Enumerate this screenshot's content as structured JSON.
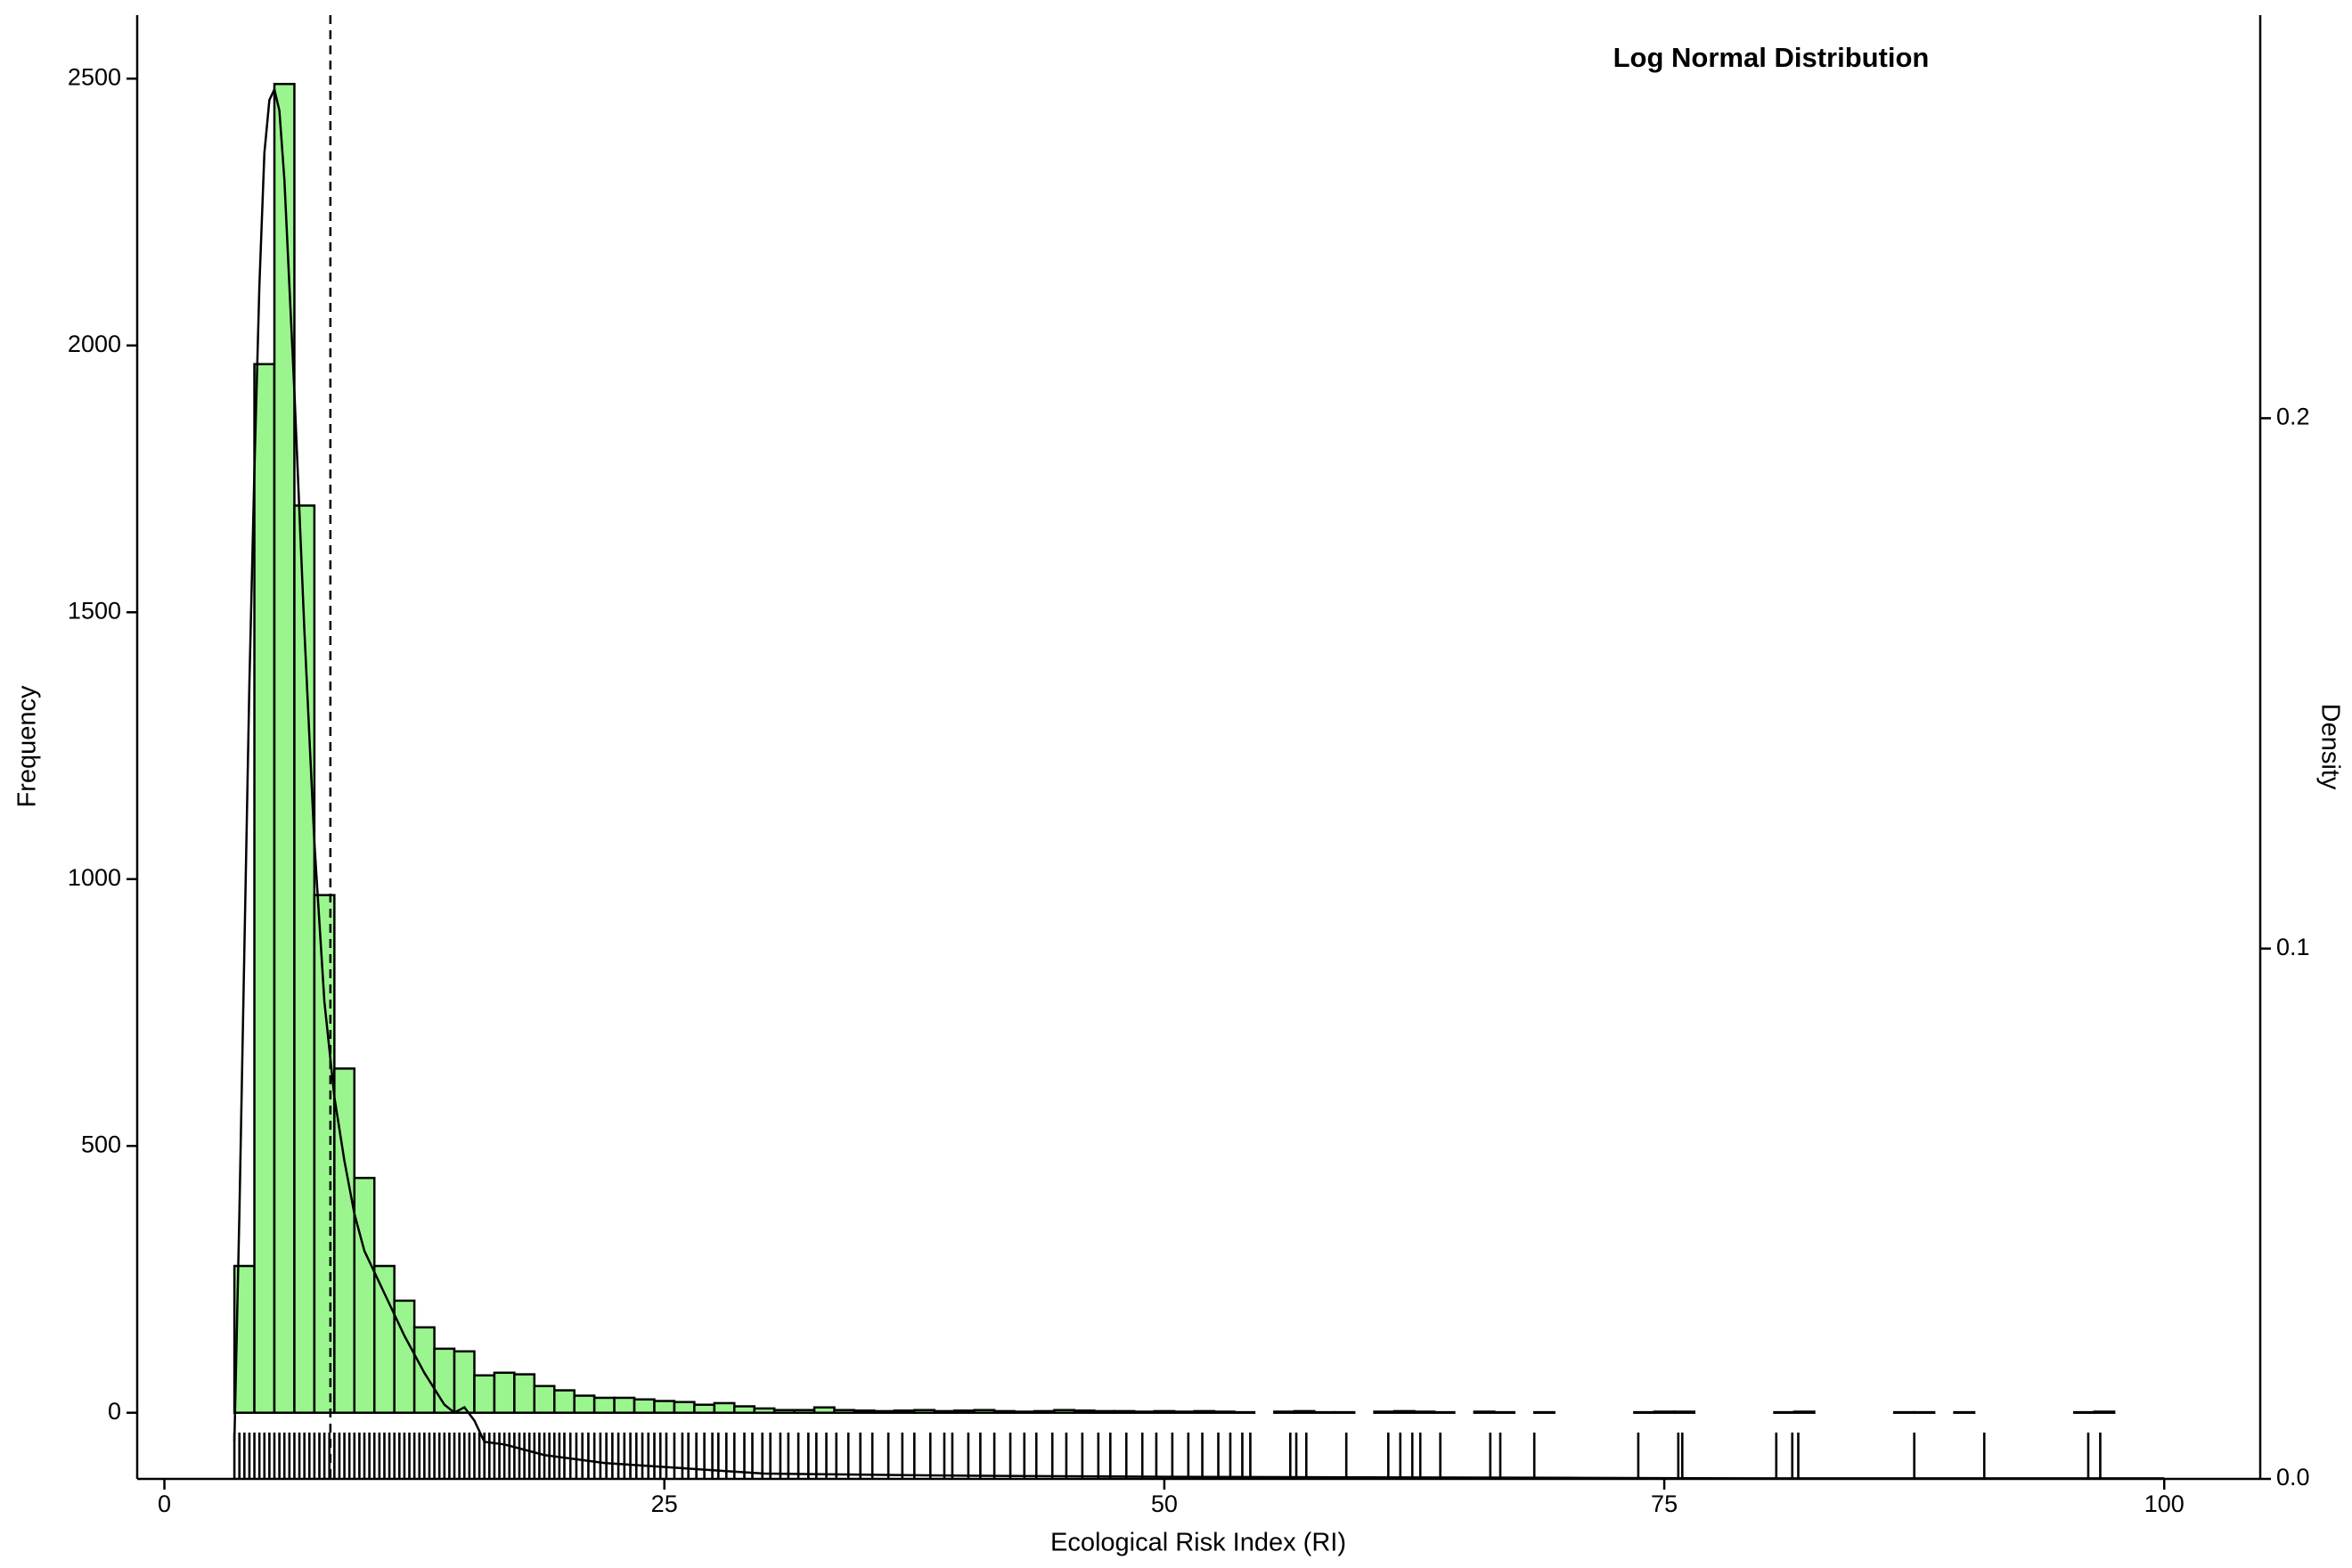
{
  "chart_data": {
    "type": "histogram",
    "title": "Log Normal Distribution",
    "x_label": "Ecological Risk Index (RI)",
    "y_label": "Frequency",
    "y2_label": "Density",
    "color": "#9af58e",
    "bins": [
      3.5,
      4.5,
      5.5,
      6.5,
      7.5,
      8.5,
      9.5,
      10.5,
      11.5,
      12.5,
      13.5,
      14.5,
      15.5,
      16.5,
      17.5,
      18.5,
      19.5,
      20.5,
      21.5,
      22.5,
      23.5,
      24.5,
      25.5,
      26.5,
      27.5,
      28.5,
      29.5,
      30.5,
      31.5,
      32.5,
      33.5,
      34.5,
      35.5,
      36.5,
      37.5,
      38.5,
      39.5,
      40.5,
      41.5,
      42.5,
      43.5,
      44.5,
      45.5,
      46.5,
      47.5,
      48.5,
      49.5,
      50.5,
      51.5,
      52.5,
      53.5,
      54.5,
      55.5,
      56.5,
      57.5,
      58.5,
      59.5,
      60.5,
      61.5,
      62.5,
      63.5,
      64.5,
      65.5,
      66.5,
      67.5,
      68.5,
      69.5,
      70.5,
      71.5,
      72.5,
      73.5,
      74.5,
      75.5,
      76.5,
      77.5,
      78.5,
      79.5,
      80.5,
      81.5,
      82.5,
      83.5,
      84.5,
      85.5,
      86.5,
      87.5,
      88.5,
      89.5,
      90.5,
      91.5,
      92.5,
      93.5,
      94.5,
      95.5,
      96.5,
      97.5,
      98.5,
      99.5
    ],
    "values": [
      275,
      1965,
      2490,
      1700,
      970,
      645,
      440,
      275,
      210,
      160,
      120,
      115,
      70,
      75,
      72,
      50,
      42,
      32,
      28,
      28,
      25,
      22,
      20,
      15,
      18,
      12,
      8,
      5,
      5,
      10,
      5,
      4,
      3,
      4,
      5,
      3,
      4,
      5,
      3,
      2,
      3,
      5,
      4,
      3,
      3,
      2,
      3,
      2,
      3,
      2,
      1,
      0,
      2,
      3,
      1,
      1,
      0,
      2,
      3,
      2,
      1,
      0,
      2,
      1,
      0,
      1,
      0,
      0,
      0,
      0,
      1,
      2,
      2,
      0,
      0,
      0,
      0,
      1,
      2,
      0,
      0,
      0,
      0,
      1,
      1,
      0,
      1,
      0,
      0,
      0,
      0,
      0,
      1,
      2,
      0,
      0
    ],
    "density": {
      "axis": "y2",
      "x": [
        3.5,
        3.75,
        4,
        4.25,
        4.5,
        4.75,
        5,
        5.25,
        5.5,
        5.75,
        6,
        6.5,
        7,
        7.5,
        8,
        8.5,
        9,
        9.5,
        10,
        11,
        12,
        13,
        14,
        14.5,
        15,
        15.5,
        16,
        17,
        18,
        19,
        20,
        22,
        24,
        26,
        28,
        30,
        35,
        40,
        50,
        60,
        70,
        80,
        90,
        100
      ],
      "values": [
        0.007,
        0.05,
        0.1,
        0.15,
        0.19,
        0.225,
        0.25,
        0.26,
        0.262,
        0.258,
        0.245,
        0.205,
        0.16,
        0.12,
        0.09,
        0.072,
        0.06,
        0.05,
        0.043,
        0.035,
        0.027,
        0.02,
        0.014,
        0.0125,
        0.0135,
        0.011,
        0.007,
        0.0065,
        0.0055,
        0.0045,
        0.004,
        0.003,
        0.0025,
        0.002,
        0.0015,
        0.001,
        0.0008,
        0.0006,
        0.0004,
        0.0003,
        0.0002,
        0.0001,
        0.0001,
        0.0001
      ]
    },
    "rug": [
      3.5,
      3.75,
      4,
      4.25,
      4.5,
      4.75,
      5,
      5.25,
      5.5,
      5.75,
      6,
      6.25,
      6.5,
      6.75,
      7,
      7.25,
      7.5,
      7.75,
      8,
      8.25,
      8.5,
      8.75,
      9,
      9.25,
      9.5,
      9.75,
      10,
      10.25,
      10.5,
      10.75,
      11,
      11.25,
      11.5,
      11.75,
      12,
      12.25,
      12.5,
      12.75,
      13,
      13.25,
      13.5,
      13.75,
      14,
      14.25,
      14.5,
      14.75,
      15,
      15.25,
      15.5,
      15.75,
      16,
      16.25,
      16.5,
      16.75,
      17,
      17.25,
      17.5,
      17.75,
      18,
      18.25,
      18.5,
      18.75,
      19,
      19.25,
      19.5,
      19.75,
      20,
      20.3,
      20.6,
      20.9,
      21.2,
      21.5,
      21.8,
      22.1,
      22.4,
      22.7,
      23,
      23.3,
      23.6,
      23.9,
      24.2,
      24.5,
      24.8,
      25.1,
      25.5,
      25.9,
      26.2,
      26.6,
      27,
      27.4,
      27.7,
      28.1,
      28.5,
      29,
      29.4,
      29.9,
      30.3,
      30.8,
      31.2,
      31.7,
      32.2,
      32.6,
      33.1,
      33.6,
      34.2,
      34.8,
      35.4,
      36.2,
      36.9,
      37.5,
      38.3,
      39,
      39.4,
      40.2,
      40.8,
      41.5,
      42.3,
      43,
      43.6,
      44.4,
      45.1,
      45.9,
      46.7,
      47.3,
      48.1,
      48.9,
      49.6,
      50.4,
      51.2,
      51.9,
      52.7,
      53.3,
      53.9,
      54.3,
      56.3,
      56.6,
      57.1,
      59.1,
      61.2,
      61.8,
      62.4,
      62.8,
      63.8,
      66.3,
      66.8,
      68.5,
      73.7,
      75.7,
      75.9,
      80.6,
      81.4,
      81.7,
      87.5,
      91.0,
      96.2,
      96.8
    ],
    "vline": 8.3,
    "xlim": [
      -1.36,
      104.8
    ],
    "xticks": [
      0,
      25,
      50,
      75,
      100
    ],
    "ylim": [
      -124,
      2619
    ],
    "yticks": [
      0,
      500,
      1000,
      1500,
      2000,
      2500
    ],
    "y2lim": [
      0,
      0.276
    ],
    "y2ticks": [
      {
        "value": 0,
        "label": "0.0"
      },
      0.1,
      0.2
    ]
  }
}
